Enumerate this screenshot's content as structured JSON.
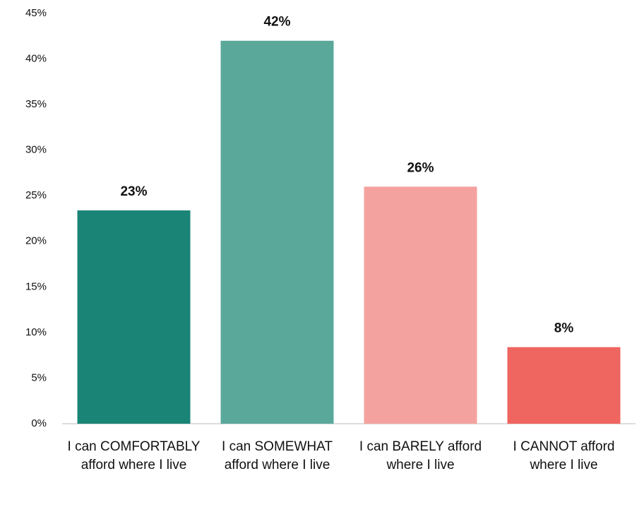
{
  "chart_data": {
    "type": "bar",
    "categories": [
      "I can COMFORTABLY afford where I live",
      "I can SOMEWHAT afford where I live",
      "I can BARELY afford where I live",
      "I CANNOT afford where I live"
    ],
    "values": [
      23.4,
      42,
      26,
      8.4
    ],
    "value_labels": [
      "23%",
      "42%",
      "26%",
      "8%"
    ],
    "colors": [
      "#1a8577",
      "#5aa89a",
      "#f4a29f",
      "#ef6560"
    ],
    "ylim": [
      0,
      45
    ],
    "yticks": [
      {
        "value": 0,
        "label": "0%"
      },
      {
        "value": 5,
        "label": "5%"
      },
      {
        "value": 10,
        "label": "10%"
      },
      {
        "value": 15,
        "label": "15%"
      },
      {
        "value": 20,
        "label": "20%"
      },
      {
        "value": 25,
        "label": "25%"
      },
      {
        "value": 30,
        "label": "30%"
      },
      {
        "value": 35,
        "label": "35%"
      },
      {
        "value": 40,
        "label": "40%"
      },
      {
        "value": 45,
        "label": "45%"
      }
    ],
    "grid": false
  }
}
